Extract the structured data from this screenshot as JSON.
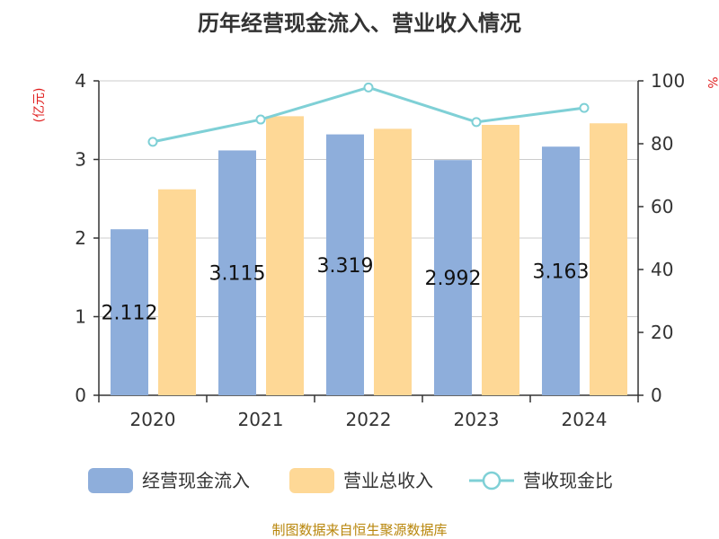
{
  "chart_data": {
    "type": "bar",
    "title": "历年经营现金流入、营业收入情况",
    "categories": [
      "2020",
      "2021",
      "2022",
      "2023",
      "2024"
    ],
    "left_axis": {
      "unit": "(亿元)",
      "ylim": [
        0,
        4
      ],
      "ticks": [
        "0",
        "1",
        "2",
        "3",
        "4"
      ]
    },
    "right_axis": {
      "unit": "%",
      "ylim": [
        0,
        100
      ],
      "ticks": [
        "0",
        "20",
        "40",
        "60",
        "80",
        "100"
      ]
    },
    "grid": true,
    "legend_position": "bottom",
    "series": [
      {
        "name": "经营现金流入",
        "type": "bar",
        "axis": "left",
        "color": "#8eaedb",
        "values": [
          2.112,
          3.115,
          3.319,
          2.992,
          3.163
        ],
        "labels": [
          "2.112",
          "3.115",
          "3.319",
          "2.992",
          "3.163"
        ]
      },
      {
        "name": "营业总收入",
        "type": "bar",
        "axis": "left",
        "color": "#fed896",
        "values": [
          2.62,
          3.55,
          3.39,
          3.44,
          3.46
        ]
      },
      {
        "name": "营收现金比",
        "type": "line",
        "axis": "right",
        "color": "#7fd0d6",
        "values": [
          80.6,
          87.7,
          97.9,
          86.9,
          91.4
        ]
      }
    ],
    "source": "制图数据来自恒生聚源数据库"
  }
}
